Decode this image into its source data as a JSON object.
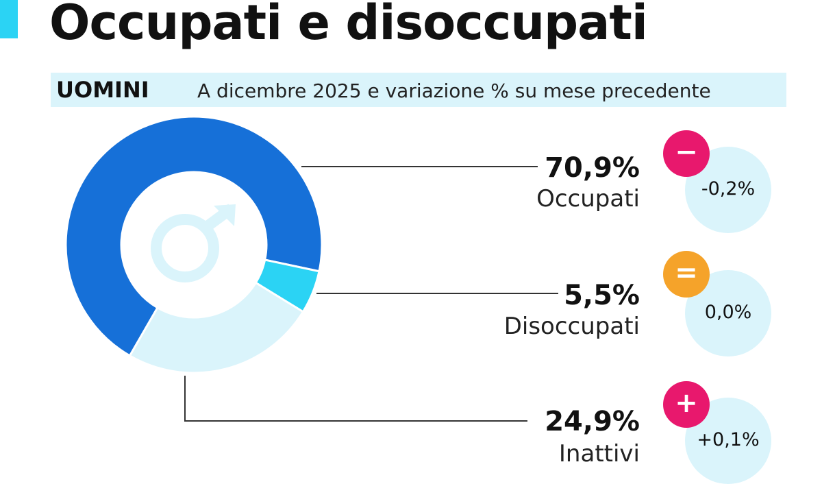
{
  "title": "Occupati e disoccupati",
  "subtitle": {
    "gender": "UOMINI",
    "description": "A dicembre 2025 e variazione % su mese precedente"
  },
  "chart_data": {
    "type": "pie",
    "variant": "donut",
    "title": "Occupati e disoccupati",
    "center_icon": "male-symbol-icon",
    "slices": [
      {
        "label": "Occupati",
        "value": 70.9,
        "value_label": "70,9%",
        "color": "#1670d8",
        "change": "-0,2%",
        "change_sign": "−",
        "change_color": "#e8186d"
      },
      {
        "label": "Disoccupati",
        "value": 5.5,
        "value_label": "5,5%",
        "color": "#2bd3f4",
        "change": "0,0%",
        "change_sign": "=",
        "change_color": "#f5a32a"
      },
      {
        "label": "Inattivi",
        "value": 24.9,
        "value_label": "24,9%",
        "color": "#daf4fb",
        "change": "+0,1%",
        "change_sign": "+",
        "change_color": "#e8186d"
      }
    ]
  }
}
